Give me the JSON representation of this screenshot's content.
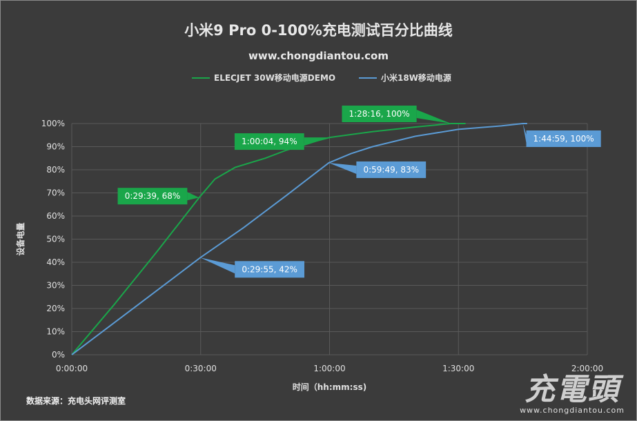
{
  "chart_data": {
    "type": "line",
    "title": "小米9 Pro 0-100%充电测试百分比曲线",
    "subtitle": "www.chongdiantou.com",
    "xlabel": "时间（hh:mm:ss)",
    "ylabel": "设备电量",
    "xlim_seconds": [
      0,
      7200
    ],
    "ylim": [
      0,
      100
    ],
    "x_ticks": [
      {
        "seconds": 0,
        "label": "0:00:00"
      },
      {
        "seconds": 1800,
        "label": "0:30:00"
      },
      {
        "seconds": 3600,
        "label": "1:00:00"
      },
      {
        "seconds": 5400,
        "label": "1:30:00"
      },
      {
        "seconds": 7200,
        "label": "2:00:00"
      }
    ],
    "y_ticks": [
      {
        "value": 0,
        "label": "0%"
      },
      {
        "value": 10,
        "label": "10%"
      },
      {
        "value": 20,
        "label": "20%"
      },
      {
        "value": 30,
        "label": "30%"
      },
      {
        "value": 40,
        "label": "40%"
      },
      {
        "value": 50,
        "label": "50%"
      },
      {
        "value": 60,
        "label": "60%"
      },
      {
        "value": 70,
        "label": "70%"
      },
      {
        "value": 80,
        "label": "80%"
      },
      {
        "value": 90,
        "label": "90%"
      },
      {
        "value": 100,
        "label": "100%"
      }
    ],
    "series": [
      {
        "name": "ELECJET  30W移动电源DEMO",
        "color": "#1aa64a",
        "points": [
          [
            0,
            0
          ],
          [
            600,
            22
          ],
          [
            1200,
            45
          ],
          [
            1779,
            68
          ],
          [
            2000,
            76
          ],
          [
            2280,
            81
          ],
          [
            2700,
            85
          ],
          [
            3000,
            88.5
          ],
          [
            3300,
            91.5
          ],
          [
            3604,
            94
          ],
          [
            4200,
            96.5
          ],
          [
            4800,
            98.5
          ],
          [
            5296,
            100
          ],
          [
            5500,
            100
          ]
        ],
        "annotations": [
          {
            "seconds": 1779,
            "value": 68,
            "label": "0:29:39, 68%",
            "side": "left"
          },
          {
            "seconds": 3604,
            "value": 94,
            "label": "1:00:04, 94%",
            "side": "left"
          },
          {
            "seconds": 5296,
            "value": 100,
            "label": "1:28:16, 100%",
            "side": "left"
          }
        ]
      },
      {
        "name": "小米18W移动电源",
        "color": "#5b9bd5",
        "points": [
          [
            0,
            0
          ],
          [
            900,
            21
          ],
          [
            1795,
            42
          ],
          [
            2400,
            55
          ],
          [
            3000,
            69
          ],
          [
            3589,
            83
          ],
          [
            3900,
            87
          ],
          [
            4200,
            90
          ],
          [
            4800,
            94.5
          ],
          [
            5400,
            97.5
          ],
          [
            6000,
            99
          ],
          [
            6299,
            100
          ],
          [
            6360,
            100
          ]
        ],
        "annotations": [
          {
            "seconds": 1795,
            "value": 42,
            "label": "0:29:55, 42%",
            "side": "right"
          },
          {
            "seconds": 3589,
            "value": 83,
            "label": "0:59:49, 83%",
            "side": "right"
          },
          {
            "seconds": 6299,
            "value": 100,
            "label": "1:44:59, 100%",
            "side": "right"
          }
        ]
      }
    ]
  },
  "source_label": "数据来源：充电头网评测室",
  "watermark": {
    "brand": "充電頭",
    "url": "www.chongdiantou.com"
  }
}
